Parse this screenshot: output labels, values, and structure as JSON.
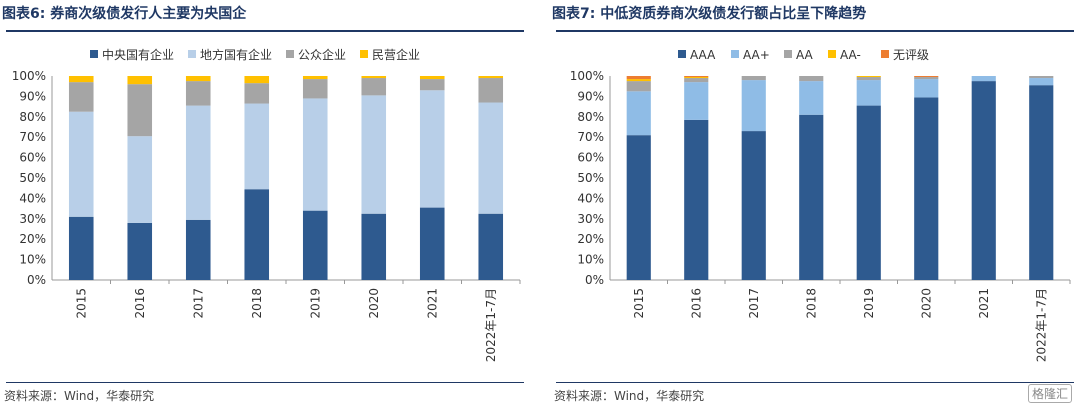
{
  "colors": {
    "dark_blue": "#2e5a8f",
    "light_blue": "#b8cfe8",
    "sky_blue": "#8fbce6",
    "gray": "#a5a5a5",
    "yellow": "#ffc000",
    "orange": "#ed7d31",
    "title": "#1f3864"
  },
  "watermark": "格隆汇",
  "chart_data": [
    {
      "type": "bar",
      "stacked": true,
      "title": "图表6:  券商次级债发行人主要为央国企",
      "source": "资料来源：Wind，华泰研究",
      "categories": [
        "2015",
        "2016",
        "2017",
        "2018",
        "2019",
        "2020",
        "2021",
        "2022年1-7月"
      ],
      "ylim": [
        0,
        100
      ],
      "yticks": [
        "0%",
        "10%",
        "20%",
        "30%",
        "40%",
        "50%",
        "60%",
        "70%",
        "80%",
        "90%",
        "100%"
      ],
      "legend_position": "top",
      "series": [
        {
          "name": "中央国有企业",
          "color": "#2e5a8f",
          "values": [
            31,
            28,
            29.5,
            44.5,
            34,
            32.5,
            35.5,
            32.5
          ]
        },
        {
          "name": "地方国有企业",
          "color": "#b8cfe8",
          "values": [
            51.5,
            42.5,
            56,
            42,
            55,
            58,
            57.5,
            54.5
          ]
        },
        {
          "name": "公众企业",
          "color": "#a5a5a5",
          "values": [
            14.5,
            25.5,
            12,
            10,
            9.5,
            8.5,
            5.5,
            12
          ]
        },
        {
          "name": "民营企业",
          "color": "#ffc000",
          "values": [
            3,
            4,
            2.5,
            3.5,
            1.5,
            1,
            1.5,
            1
          ]
        }
      ]
    },
    {
      "type": "bar",
      "stacked": true,
      "title": "图表7:  中低资质券商次级债发行额占比呈下降趋势",
      "source": "资料来源：Wind，华泰研究",
      "categories": [
        "2015",
        "2016",
        "2017",
        "2018",
        "2019",
        "2020",
        "2021",
        "2022年1-7月"
      ],
      "ylim": [
        0,
        100
      ],
      "yticks": [
        "0%",
        "10%",
        "20%",
        "30%",
        "40%",
        "50%",
        "60%",
        "70%",
        "80%",
        "90%",
        "100%"
      ],
      "legend_position": "top",
      "series": [
        {
          "name": "AAA",
          "color": "#2e5a8f",
          "values": [
            71,
            78.5,
            73,
            81,
            85.5,
            89.5,
            97.5,
            95.5
          ]
        },
        {
          "name": "AA+",
          "color": "#8fbce6",
          "values": [
            21.5,
            18.5,
            25,
            16.5,
            12.5,
            9,
            2.5,
            3.5
          ]
        },
        {
          "name": "AA",
          "color": "#a5a5a5",
          "values": [
            5,
            2,
            2,
            2.5,
            1.5,
            1,
            0,
            1
          ]
        },
        {
          "name": "AA-",
          "color": "#ffc000",
          "values": [
            1,
            0.5,
            0,
            0,
            0.5,
            0,
            0,
            0
          ]
        },
        {
          "name": "无评级",
          "color": "#ed7d31",
          "values": [
            1.5,
            0.5,
            0,
            0,
            0,
            0.5,
            0,
            0
          ]
        }
      ]
    }
  ]
}
